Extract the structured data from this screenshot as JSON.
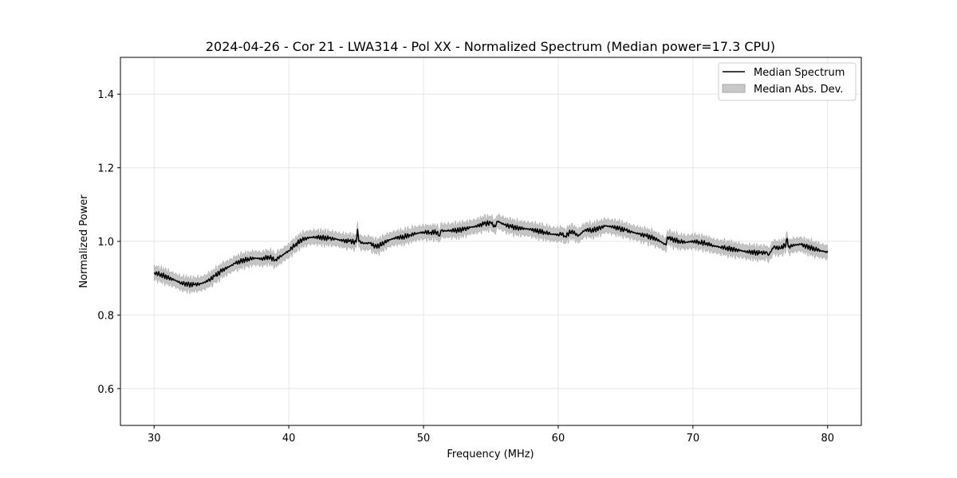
{
  "chart_data": {
    "type": "line",
    "title": "2024-04-26 - Cor 21 - LWA314 - Pol XX - Normalized Spectrum (Median power=17.3 CPU)",
    "xlabel": "Frequency (MHz)",
    "ylabel": "Normalized Power",
    "xlim": [
      27.5,
      82.5
    ],
    "ylim": [
      0.5,
      1.5
    ],
    "xticks": [
      30,
      40,
      50,
      60,
      70,
      80
    ],
    "yticks": [
      0.6,
      0.8,
      1.0,
      1.2,
      1.4
    ],
    "xtick_labels": [
      "30",
      "40",
      "50",
      "60",
      "70",
      "80"
    ],
    "ytick_labels": [
      "0.6",
      "0.8",
      "1.0",
      "1.2",
      "1.4"
    ],
    "grid": true,
    "legend_position": "top-right",
    "series": [
      {
        "name": "Median Spectrum",
        "kind": "line",
        "color": "#000000",
        "x": [
          30.0,
          30.5,
          31.0,
          31.5,
          32.0,
          32.5,
          33.0,
          33.5,
          34.0,
          34.5,
          35.0,
          35.5,
          36.0,
          36.5,
          37.0,
          37.5,
          38.0,
          38.5,
          39.0,
          39.5,
          40.0,
          40.5,
          41.0,
          41.5,
          42.0,
          42.5,
          43.0,
          43.5,
          44.0,
          44.5,
          45.0,
          45.1,
          45.2,
          45.5,
          46.0,
          46.5,
          47.0,
          47.5,
          48.0,
          48.5,
          49.0,
          49.5,
          50.0,
          50.5,
          51.0,
          51.2,
          51.3,
          51.5,
          52.0,
          52.5,
          53.0,
          53.5,
          54.0,
          54.5,
          55.0,
          55.3,
          55.5,
          56.0,
          56.5,
          57.0,
          57.5,
          58.0,
          58.5,
          59.0,
          59.5,
          60.0,
          60.3,
          60.5,
          61.0,
          61.5,
          62.0,
          62.5,
          63.0,
          63.5,
          64.0,
          64.5,
          65.0,
          65.5,
          66.0,
          66.5,
          67.0,
          67.5,
          68.0,
          68.1,
          68.5,
          69.0,
          69.5,
          70.0,
          70.5,
          71.0,
          71.5,
          72.0,
          72.5,
          73.0,
          73.5,
          74.0,
          74.5,
          75.0,
          75.5,
          75.6,
          76.0,
          76.5,
          76.9,
          77.0,
          77.1,
          77.5,
          78.0,
          78.5,
          79.0,
          79.5,
          80.0
        ],
        "values": [
          0.915,
          0.91,
          0.902,
          0.895,
          0.887,
          0.883,
          0.882,
          0.885,
          0.893,
          0.905,
          0.92,
          0.93,
          0.94,
          0.947,
          0.952,
          0.955,
          0.952,
          0.958,
          0.95,
          0.962,
          0.975,
          0.992,
          1.005,
          1.01,
          1.012,
          1.01,
          1.008,
          1.006,
          1.002,
          1.0,
          0.998,
          1.033,
          1.0,
          0.995,
          0.995,
          0.985,
          0.995,
          1.005,
          1.01,
          1.012,
          1.018,
          1.022,
          1.025,
          1.025,
          1.025,
          1.015,
          1.03,
          1.028,
          1.03,
          1.03,
          1.033,
          1.038,
          1.042,
          1.048,
          1.05,
          1.04,
          1.055,
          1.045,
          1.04,
          1.036,
          1.035,
          1.032,
          1.028,
          1.025,
          1.02,
          1.018,
          1.022,
          1.014,
          1.028,
          1.015,
          1.032,
          1.03,
          1.035,
          1.042,
          1.04,
          1.035,
          1.03,
          1.025,
          1.02,
          1.015,
          1.01,
          1.002,
          0.99,
          1.012,
          1.005,
          1.0,
          0.998,
          1.0,
          0.998,
          0.995,
          0.988,
          0.985,
          0.982,
          0.978,
          0.975,
          0.972,
          0.97,
          0.968,
          0.97,
          0.962,
          0.985,
          0.98,
          0.992,
          1.008,
          0.985,
          0.99,
          0.992,
          0.985,
          0.98,
          0.975,
          0.97
        ]
      },
      {
        "name": "Median Abs. Dev.",
        "kind": "band",
        "color": "#b0b0b0",
        "halfwidth": 0.018
      }
    ]
  }
}
